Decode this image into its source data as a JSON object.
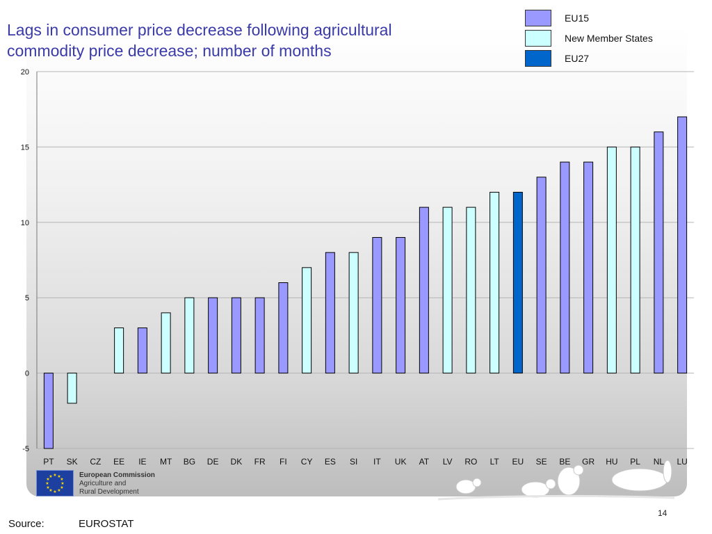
{
  "slide": {
    "title_line1": "Lags in consumer price decrease following agricultural",
    "title_line2": "commodity price decrease; number of months",
    "page_number": "14",
    "source_label": "Source:",
    "source_value": "EUROSTAT",
    "logo": {
      "line1": "European Commission",
      "line2": "Agriculture and",
      "line3": "Rural Development"
    }
  },
  "legend": [
    {
      "label": "EU15",
      "color": "#9999ff"
    },
    {
      "label": "New Member States",
      "color": "#ccffff"
    },
    {
      "label": "EU27",
      "color": "#0066cc"
    }
  ],
  "chart_data": {
    "type": "bar",
    "title": "Lags in consumer price decrease following agricultural commodity price decrease; number of months",
    "categories": [
      "PT",
      "SK",
      "CZ",
      "EE",
      "IE",
      "MT",
      "BG",
      "DE",
      "DK",
      "FR",
      "FI",
      "CY",
      "ES",
      "SI",
      "IT",
      "UK",
      "AT",
      "LV",
      "RO",
      "LT",
      "EU",
      "SE",
      "BE",
      "GR",
      "HU",
      "PL",
      "NL",
      "LU"
    ],
    "values": [
      -5,
      -2,
      0,
      3,
      3,
      4,
      5,
      5,
      5,
      5,
      6,
      7,
      8,
      8,
      9,
      9,
      11,
      11,
      11,
      12,
      12,
      13,
      14,
      14,
      15,
      15,
      16,
      17
    ],
    "groups": [
      "EU15",
      "New Member States",
      "New Member States",
      "New Member States",
      "EU15",
      "New Member States",
      "New Member States",
      "EU15",
      "EU15",
      "EU15",
      "EU15",
      "New Member States",
      "EU15",
      "New Member States",
      "EU15",
      "EU15",
      "EU15",
      "New Member States",
      "New Member States",
      "New Member States",
      "EU27",
      "EU15",
      "EU15",
      "EU15",
      "New Member States",
      "New Member States",
      "EU15",
      "EU15"
    ],
    "ylim": [
      -5,
      20
    ],
    "yticks": [
      -5,
      0,
      5,
      10,
      15,
      20
    ],
    "grid": true,
    "legend_position": "top-right"
  }
}
